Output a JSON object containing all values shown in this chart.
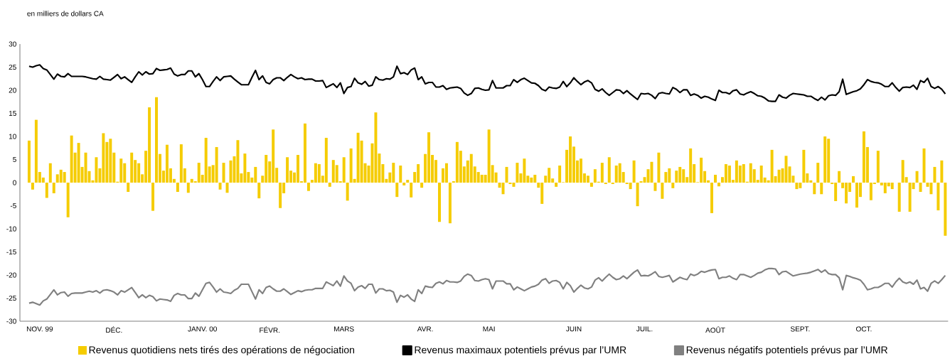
{
  "chart_data": {
    "type": "bar",
    "ylabel": "en milliers de dollars CA",
    "categories": [
      null,
      null,
      null,
      "NOV. 99",
      null,
      null,
      null,
      null,
      null,
      null,
      null,
      null,
      null,
      null,
      null,
      null,
      null,
      null,
      null,
      null,
      null,
      null,
      null,
      null,
      "DÉC.",
      null,
      null,
      null,
      null,
      null,
      null,
      null,
      null,
      null,
      null,
      null,
      null,
      null,
      null,
      null,
      null,
      null,
      null,
      null,
      null,
      null,
      null,
      null,
      null,
      "JANV. 00",
      null,
      null,
      null,
      null,
      null,
      null,
      null,
      null,
      null,
      null,
      null,
      null,
      null,
      null,
      null,
      null,
      null,
      null,
      "FÉVR.",
      null,
      null,
      null,
      null,
      null,
      null,
      null,
      null,
      null,
      null,
      null,
      null,
      null,
      null,
      null,
      null,
      null,
      null,
      null,
      null,
      "MARS",
      null,
      null,
      null,
      null,
      null,
      null,
      null,
      null,
      null,
      null,
      null,
      null,
      null,
      null,
      null,
      null,
      null,
      null,
      null,
      null,
      null,
      null,
      "AVR.",
      null,
      null,
      null,
      null,
      null,
      null,
      null,
      null,
      null,
      null,
      null,
      null,
      null,
      null,
      null,
      null,
      null,
      "MAI",
      null,
      null,
      null,
      null,
      null,
      null,
      null,
      null,
      null,
      null,
      null,
      null,
      null,
      null,
      null,
      null,
      null,
      null,
      null,
      null,
      null,
      null,
      null,
      "JUIN",
      null,
      null,
      null,
      null,
      null,
      null,
      null,
      null,
      null,
      null,
      null,
      null,
      null,
      null,
      null,
      null,
      null,
      null,
      null,
      "JUIL.",
      null,
      null,
      null,
      null,
      null,
      null,
      null,
      null,
      null,
      null,
      null,
      null,
      null,
      null,
      null,
      null,
      null,
      null,
      null,
      "AOÛT",
      null,
      null,
      null,
      null,
      null,
      null,
      null,
      null,
      null,
      null,
      null,
      null,
      null,
      null,
      null,
      null,
      null,
      null,
      null,
      null,
      null,
      null,
      null,
      "SEPT.",
      null,
      null,
      null,
      null,
      null,
      null,
      null,
      null,
      null,
      null,
      null,
      null,
      null,
      null,
      null,
      null,
      null,
      "OCT.",
      null,
      null,
      null,
      null,
      null,
      null,
      null,
      null,
      null,
      null,
      null,
      null,
      null,
      null,
      null,
      null,
      null,
      null,
      null,
      null,
      null,
      null,
      null
    ],
    "ylim": [
      -30,
      30
    ],
    "yticks": [
      -30,
      -25,
      -20,
      -15,
      -10,
      -5,
      0,
      5,
      10,
      15,
      20,
      25,
      30
    ],
    "legend": "bottom",
    "marker": "none",
    "line_style": "solid",
    "series": [
      {
        "name": "Revenus quotidiens nets tirés des opérations de négociation",
        "color": "#f5cc00",
        "values": [
          9.1,
          -1.5,
          13.6,
          2.3,
          1.1,
          -3.3,
          4.2,
          -2.3,
          1.8,
          2.8,
          2.3,
          -7.5,
          10.2,
          6.5,
          8.6,
          3.4,
          6.5,
          2.5,
          0.5,
          5.5,
          3.1,
          10.7,
          8.8,
          9.5,
          6.5,
          0.2,
          5.2,
          4.2,
          -2.0,
          6.5,
          4.9,
          4.2,
          1.8,
          6.9,
          16.3,
          -6.1,
          18.5,
          6.2,
          2.6,
          8.2,
          3.1,
          0.8,
          -2.0,
          8.3,
          3.1,
          -2.2,
          0.8,
          0.3,
          4.3,
          1.7,
          9.7,
          3.5,
          3.8,
          7.7,
          -1.5,
          4.3,
          -2.2,
          4.8,
          5.7,
          9.2,
          2.0,
          6.3,
          2.3,
          1.1,
          3.4,
          -3.4,
          1.5,
          6.0,
          4.6,
          11.5,
          3.2,
          -5.5,
          -2.3,
          5.5,
          2.6,
          2.2,
          6.0,
          0.3,
          12.8,
          -1.8,
          0.6,
          4.2,
          4.0,
          1.5,
          9.7,
          -0.9,
          4.9,
          3.8,
          0.3,
          5.5,
          -3.9,
          7.4,
          0.8,
          10.8,
          9.1,
          4.2,
          3.7,
          8.5,
          15.2,
          6.3,
          4.0,
          0.8,
          2.2,
          4.3,
          -3.1,
          3.7,
          -0.6,
          0.6,
          -3.2,
          2.3,
          4.0,
          -1.1,
          6.2,
          10.9,
          6.0,
          4.9,
          -8.5,
          3.1,
          4.2,
          -8.8,
          0.3,
          8.8,
          6.9,
          3.5,
          4.8,
          6.2,
          3.5,
          2.3,
          1.7,
          1.7,
          11.5,
          3.8,
          2.2,
          -1.1,
          -2.5,
          3.4,
          -0.3,
          -0.9,
          4.3,
          2.0,
          5.2,
          1.5,
          1.1,
          1.7,
          -1.1,
          -4.6,
          1.5,
          3.2,
          0.9,
          -0.9,
          3.7,
          0.1,
          7.1,
          10.0,
          7.8,
          4.8,
          5.2,
          2.0,
          1.5,
          -0.9,
          2.9,
          0.2,
          4.3,
          -0.3,
          5.5,
          -0.3,
          3.7,
          4.2,
          2.3,
          -0.3,
          -1.4,
          4.8,
          -5.1,
          0.3,
          1.2,
          2.9,
          4.5,
          -1.8,
          6.5,
          -3.5,
          2.3,
          3.1,
          -1.2,
          2.6,
          3.4,
          2.9,
          1.2,
          7.4,
          4.0,
          0.1,
          5.4,
          2.5,
          0.5,
          -6.6,
          1.7,
          -0.8,
          1.2,
          4.0,
          3.7,
          0.6,
          4.8,
          3.7,
          4.0,
          0.2,
          4.2,
          2.9,
          0.6,
          3.7,
          1.1,
          0.5,
          7.1,
          1.4,
          2.8,
          3.1,
          5.8,
          3.5,
          1.5,
          -1.4,
          -1.2,
          7.1,
          2.0,
          0.5,
          -2.5,
          4.3,
          -2.5,
          10.0,
          9.5,
          -0.3,
          -4.0,
          2.5,
          -1.2,
          -4.5,
          -2.0,
          1.4,
          -5.4,
          -3.1,
          11.1,
          7.7,
          -3.8,
          -0.3,
          6.9,
          -0.6,
          -2.3,
          -0.8,
          -1.4,
          0,
          -6.3,
          4.9,
          1.2,
          -6.3,
          -1.4,
          2.5,
          -2.0,
          7.4,
          -0.9,
          -2.5,
          3.4,
          -6.0,
          4.8,
          -11.5
        ]
      },
      {
        "type": "line",
        "name": "Revenus maximaux potentiels prévus par l’UMR",
        "color": "#000000",
        "values": [
          25.2,
          25.0,
          25.3,
          25.5,
          24.7,
          24.4,
          23.4,
          22.4,
          23.5,
          23.0,
          22.9,
          23.6,
          23.0,
          23.0,
          23.0,
          23.0,
          22.9,
          22.7,
          22.5,
          22.4,
          23.0,
          22.4,
          22.3,
          22.2,
          22.8,
          23.4,
          22.5,
          22.9,
          22.3,
          21.7,
          22.9,
          24.0,
          23.3,
          24.0,
          23.5,
          23.6,
          24.7,
          24.3,
          24.4,
          24.5,
          24.8,
          23.5,
          23.1,
          23.4,
          23.4,
          24.2,
          24.2,
          22.9,
          23.6,
          22.3,
          20.8,
          20.8,
          21.9,
          22.9,
          22.1,
          22.9,
          23.0,
          23.1,
          22.4,
          21.8,
          21.2,
          21.2,
          21.2,
          22.8,
          24.3,
          22.3,
          23.1,
          21.7,
          21.4,
          22.3,
          22.7,
          22.7,
          22.1,
          22.8,
          23.4,
          22.9,
          22.5,
          22.7,
          22.3,
          22.4,
          22.4,
          22.0,
          22.0,
          22.1,
          20.6,
          21.0,
          21.4,
          20.6,
          21.6,
          19.3,
          20.6,
          20.8,
          22.6,
          21.6,
          21.3,
          21.9,
          20.9,
          21.1,
          22.9,
          22.3,
          22.2,
          22.5,
          22.4,
          22.9,
          25.2,
          23.6,
          23.8,
          23.4,
          24.4,
          24.8,
          22.3,
          22.9,
          21.4,
          21.7,
          21.7,
          20.7,
          20.7,
          21.0,
          20.2,
          20.5,
          20.6,
          20.7,
          20.4,
          19.4,
          18.9,
          19.3,
          20.4,
          20.5,
          20.2,
          20.0,
          20.1,
          22.1,
          20.5,
          20.5,
          20.5,
          21.0,
          21.0,
          22.3,
          21.7,
          22.3,
          22.6,
          22.1,
          21.6,
          21.5,
          21.0,
          20.2,
          19.9,
          20.7,
          20.5,
          20.4,
          20.7,
          21.9,
          20.8,
          21.6,
          22.7,
          21.9,
          21.2,
          21.8,
          22.1,
          21.6,
          20.2,
          19.8,
          20.3,
          19.5,
          18.9,
          19.5,
          20.1,
          20.0,
          19.3,
          19.9,
          19.2,
          18.6,
          18.0,
          19.3,
          19.2,
          19.3,
          18.9,
          18.2,
          19.3,
          19.5,
          19.3,
          19.2,
          20.6,
          20.2,
          19.5,
          20.1,
          20.1,
          18.9,
          19.2,
          18.9,
          18.3,
          18.7,
          18.5,
          18.1,
          17.8,
          20.0,
          19.5,
          19.5,
          19.2,
          19.9,
          20.1,
          19.2,
          19.0,
          19.4,
          19.7,
          19.3,
          18.8,
          18.7,
          18.3,
          17.7,
          17.6,
          17.6,
          19.0,
          18.5,
          18.3,
          18.9,
          19.3,
          19.2,
          19.1,
          19.0,
          18.7,
          18.7,
          18.2,
          17.8,
          18.5,
          17.9,
          18.8,
          19.0,
          18.9,
          19.7,
          22.4,
          19.1,
          19.4,
          19.7,
          19.9,
          20.3,
          21.2,
          22.3,
          21.9,
          21.7,
          21.6,
          21.3,
          20.8,
          20.8,
          21.6,
          20.6,
          19.8,
          20.6,
          20.7,
          20.6,
          21.1,
          20.2,
          22.1,
          21.7,
          22.6,
          20.8,
          20.4,
          20.8,
          20.2,
          19.2
        ]
      },
      {
        "type": "line",
        "name": "Revenus négatifs potentiels prévus par l’UMR",
        "color": "#808080",
        "values": [
          -26.1,
          -25.9,
          -26.2,
          -26.5,
          -25.6,
          -25.2,
          -24.2,
          -23.2,
          -24.3,
          -23.8,
          -23.7,
          -24.6,
          -24.0,
          -23.9,
          -23.9,
          -23.9,
          -23.7,
          -23.5,
          -23.7,
          -23.4,
          -23.9,
          -23.3,
          -23.2,
          -23.4,
          -23.7,
          -24.3,
          -23.4,
          -23.7,
          -23.2,
          -22.7,
          -23.8,
          -24.9,
          -24.3,
          -24.9,
          -24.4,
          -24.7,
          -25.6,
          -25.2,
          -25.3,
          -25.4,
          -25.7,
          -24.4,
          -24.0,
          -24.3,
          -24.3,
          -25.1,
          -25.1,
          -23.9,
          -24.6,
          -23.2,
          -21.8,
          -21.6,
          -22.6,
          -23.7,
          -23.0,
          -23.7,
          -23.8,
          -24.0,
          -23.3,
          -22.9,
          -22.0,
          -22.0,
          -22.0,
          -23.6,
          -25.2,
          -23.2,
          -24.0,
          -22.7,
          -22.4,
          -23.0,
          -23.5,
          -23.5,
          -23.0,
          -23.6,
          -24.2,
          -23.8,
          -23.4,
          -23.6,
          -23.3,
          -23.2,
          -23.2,
          -22.9,
          -22.9,
          -22.9,
          -21.5,
          -21.9,
          -22.3,
          -21.3,
          -22.4,
          -20.2,
          -21.3,
          -21.8,
          -23.4,
          -22.6,
          -22.3,
          -22.9,
          -22.0,
          -22.0,
          -23.9,
          -23.0,
          -23.0,
          -23.4,
          -23.3,
          -23.7,
          -25.9,
          -24.4,
          -24.8,
          -24.3,
          -25.2,
          -25.7,
          -23.2,
          -24.0,
          -22.4,
          -22.6,
          -22.7,
          -21.8,
          -21.5,
          -21.9,
          -21.2,
          -21.5,
          -21.5,
          -21.6,
          -21.3,
          -20.3,
          -19.8,
          -20.1,
          -21.2,
          -21.3,
          -21.0,
          -20.8,
          -21.0,
          -23.0,
          -21.3,
          -21.3,
          -21.3,
          -21.9,
          -21.9,
          -23.2,
          -22.6,
          -23.0,
          -23.4,
          -23.0,
          -22.6,
          -22.4,
          -22.0,
          -21.1,
          -20.8,
          -21.8,
          -21.3,
          -21.2,
          -21.6,
          -23.0,
          -21.6,
          -22.3,
          -23.7,
          -22.9,
          -22.2,
          -22.8,
          -23.0,
          -22.6,
          -21.1,
          -20.6,
          -21.3,
          -20.5,
          -19.8,
          -20.5,
          -21.0,
          -20.8,
          -20.2,
          -20.8,
          -20.1,
          -19.4,
          -18.9,
          -20.2,
          -20.1,
          -20.2,
          -19.8,
          -19.3,
          -20.3,
          -20.5,
          -20.3,
          -20.1,
          -21.5,
          -21.0,
          -20.5,
          -20.8,
          -21.0,
          -19.8,
          -20.1,
          -19.8,
          -19.2,
          -19.4,
          -19.1,
          -18.9,
          -18.8,
          -20.8,
          -20.5,
          -20.5,
          -20.2,
          -20.7,
          -21.0,
          -19.9,
          -19.9,
          -20.2,
          -20.5,
          -20.1,
          -19.6,
          -19.4,
          -18.9,
          -18.6,
          -18.6,
          -18.7,
          -19.9,
          -19.3,
          -19.2,
          -19.7,
          -20.2,
          -20.0,
          -19.8,
          -19.7,
          -19.6,
          -19.4,
          -19.1,
          -18.8,
          -19.4,
          -18.9,
          -19.7,
          -19.9,
          -19.9,
          -20.6,
          -23.2,
          -20.1,
          -20.3,
          -20.6,
          -20.8,
          -21.1,
          -22.0,
          -23.2,
          -23.0,
          -22.7,
          -22.7,
          -22.3,
          -21.8,
          -21.8,
          -22.6,
          -21.5,
          -20.7,
          -21.5,
          -21.8,
          -21.5,
          -22.0,
          -21.1,
          -23.0,
          -22.7,
          -23.5,
          -21.8,
          -21.3,
          -21.8,
          -21.0,
          -20.1
        ]
      }
    ]
  }
}
